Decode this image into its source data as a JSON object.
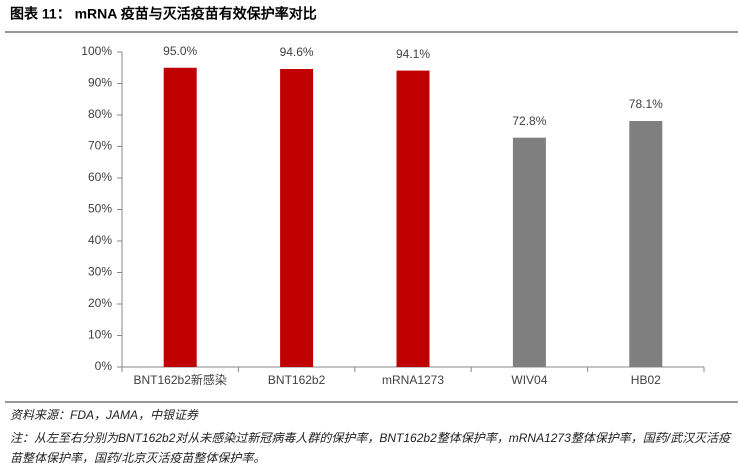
{
  "chart_data": {
    "type": "bar",
    "title": "图表 11： mRNA 疫苗与灭活疫苗有效保护率对比",
    "categories": [
      "BNT162b2新感染",
      "BNT162b2",
      "mRNA1273",
      "WIV04",
      "HB02"
    ],
    "values": [
      95.0,
      94.6,
      94.1,
      72.8,
      78.1
    ],
    "value_labels": [
      "95.0%",
      "94.6%",
      "94.1%",
      "72.8%",
      "78.1%"
    ],
    "colors": [
      "#c00000",
      "#c00000",
      "#c00000",
      "#7f7f7f",
      "#7f7f7f"
    ],
    "ylim": [
      0,
      100
    ],
    "yticks": [
      {
        "value": 0,
        "label": "0%"
      },
      {
        "value": 10,
        "label": "10%"
      },
      {
        "value": 20,
        "label": "20%"
      },
      {
        "value": 30,
        "label": "30%"
      },
      {
        "value": 40,
        "label": "40%"
      },
      {
        "value": 50,
        "label": "50%"
      },
      {
        "value": 60,
        "label": "60%"
      },
      {
        "value": 70,
        "label": "70%"
      },
      {
        "value": 80,
        "label": "80%"
      },
      {
        "value": 90,
        "label": "90%"
      },
      {
        "value": 100,
        "label": "100%"
      }
    ],
    "source": "资料来源：FDA，JAMA，中银证券",
    "note": "注：从左至右分别为BNT162b2对从未感染过新冠病毒人群的保护率，BNT162b2整体保护率，mRNA1273整体保护率，国药/武汉灭活疫苗整体保护率，国药/北京灭活疫苗整体保护率。"
  }
}
